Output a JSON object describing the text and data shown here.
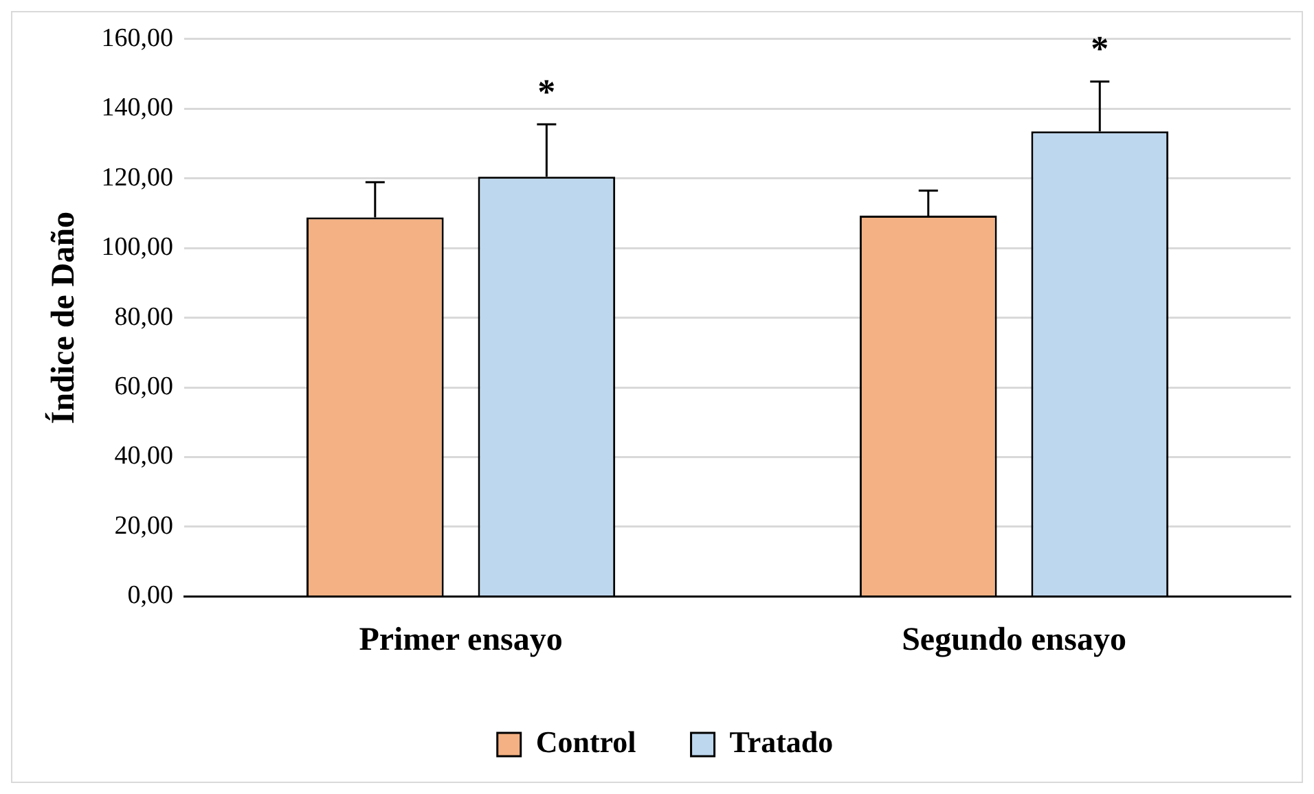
{
  "chart_data": {
    "type": "bar",
    "ylabel": "Índice de Daño",
    "categories": [
      "Primer ensayo",
      "Segundo ensayo"
    ],
    "series": [
      {
        "name": "Control",
        "color": "#f4b183",
        "values": [
          108.8,
          109.3
        ],
        "errors": [
          10.1,
          7.2
        ]
      },
      {
        "name": "Tratado",
        "color": "#bdd7ee",
        "values": [
          120.5,
          133.5
        ],
        "errors": [
          15.0,
          14.3
        ]
      }
    ],
    "ylim": [
      0,
      160
    ],
    "yticks": [
      {
        "value": 0,
        "label": "0,00"
      },
      {
        "value": 20,
        "label": "20,00"
      },
      {
        "value": 40,
        "label": "40,00"
      },
      {
        "value": 60,
        "label": "60,00"
      },
      {
        "value": 80,
        "label": "80,00"
      },
      {
        "value": 100,
        "label": "100,00"
      },
      {
        "value": 120,
        "label": "120,00"
      },
      {
        "value": 140,
        "label": "140,00"
      },
      {
        "value": 160,
        "label": "160,00"
      }
    ],
    "grid": "y",
    "legend": "bottom",
    "annotations": [
      "*",
      "*"
    ]
  }
}
